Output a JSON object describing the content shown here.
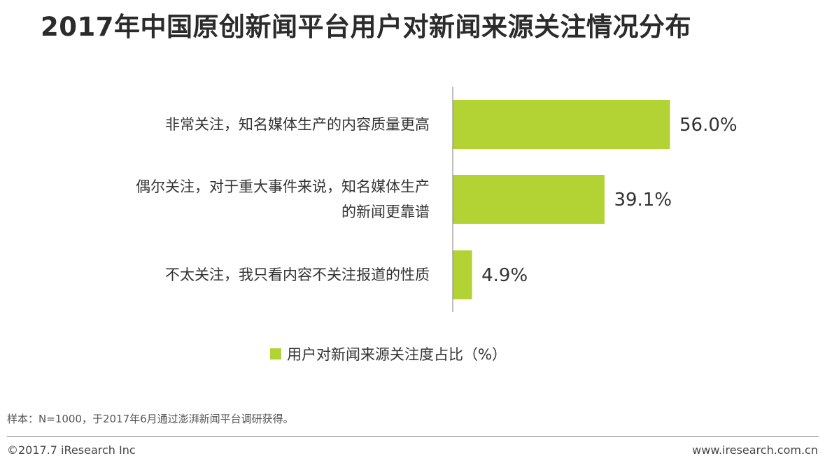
{
  "title": "2017年中国原创新闻平台用户对新闻来源关注情况分布",
  "chart_data": {
    "type": "bar",
    "orientation": "horizontal",
    "categories": [
      "非常关注，知名媒体生产的内容质量更高",
      "偶尔关注，对于重大事件来说，知名媒体生产的新闻更靠谱",
      "不太关注，我只看内容不关注报道的性质"
    ],
    "category_lines": [
      [
        "非常关注，知名媒体生产的内容质量更高"
      ],
      [
        "偶尔关注，对于重大事件来说，知名媒体生产",
        "的新闻更靠谱"
      ],
      [
        "不太关注，我只看内容不关注报道的性质"
      ]
    ],
    "series": [
      {
        "name": "用户对新闻来源关注度占比（%）",
        "values": [
          56.0,
          39.1,
          4.9
        ]
      }
    ],
    "value_labels": [
      "56.0%",
      "39.1%",
      "4.9%"
    ],
    "xlim": [
      0,
      56
    ],
    "legend_position": "bottom",
    "grid": false,
    "color": "#b3d234"
  },
  "note": "样本：N=1000，于2017年6月通过澎湃新闻平台调研获得。",
  "footer": {
    "copyright": "©2017.7 iResearch Inc",
    "website": "www.iresearch.com.cn"
  }
}
